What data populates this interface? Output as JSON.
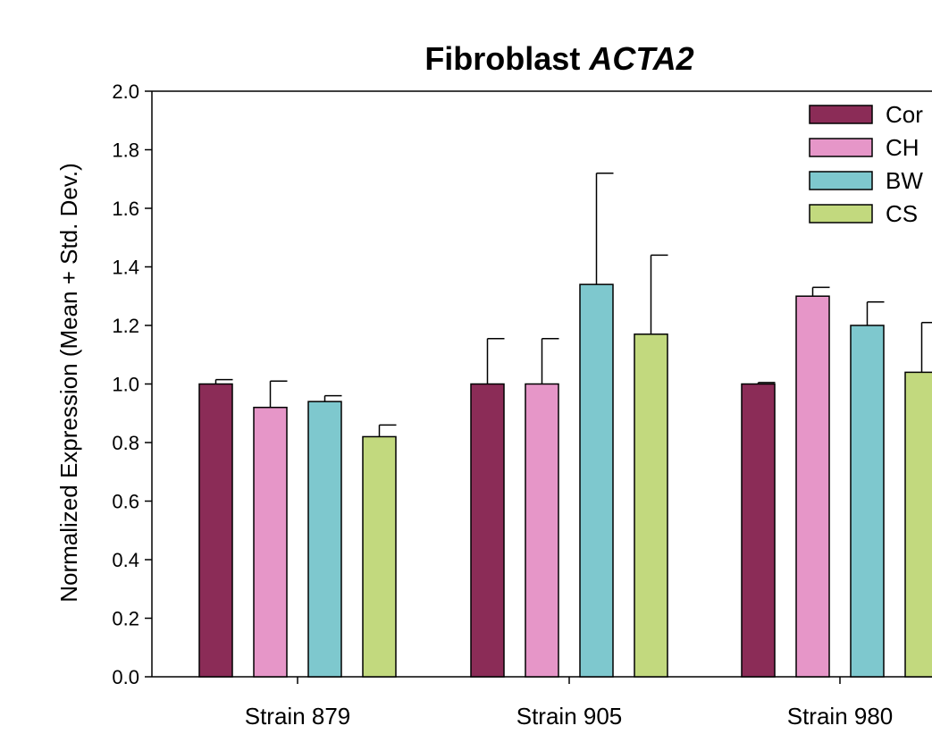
{
  "chart_data": {
    "type": "bar",
    "title_main": "Fibroblast ",
    "title_italic": "ACTA2",
    "xlabel": "",
    "ylabel": "Normalized Expression (Mean + Std. Dev.)",
    "ylim": [
      0,
      2.0
    ],
    "yticks": [
      "0.0",
      "0.2",
      "0.4",
      "0.6",
      "0.8",
      "1.0",
      "1.2",
      "1.4",
      "1.6",
      "1.8",
      "2.0"
    ],
    "categories": [
      "Strain 879",
      "Strain 905",
      "Strain 980"
    ],
    "series": [
      {
        "name": "Cor",
        "color": "#8b2c57",
        "values": [
          1.0,
          1.0,
          1.0
        ],
        "errors": [
          0.015,
          0.155,
          0.005
        ]
      },
      {
        "name": "CH",
        "color": "#e696c8",
        "values": [
          0.92,
          1.0,
          1.3
        ],
        "errors": [
          0.09,
          0.155,
          0.03
        ]
      },
      {
        "name": "BW",
        "color": "#7ec8ce",
        "values": [
          0.94,
          1.34,
          1.2
        ],
        "errors": [
          0.02,
          0.38,
          0.08
        ]
      },
      {
        "name": "CS",
        "color": "#c2d97e",
        "values": [
          0.82,
          1.17,
          1.04
        ],
        "errors": [
          0.04,
          0.27,
          0.17
        ]
      }
    ],
    "grid": false,
    "legend_position": "top-right"
  }
}
